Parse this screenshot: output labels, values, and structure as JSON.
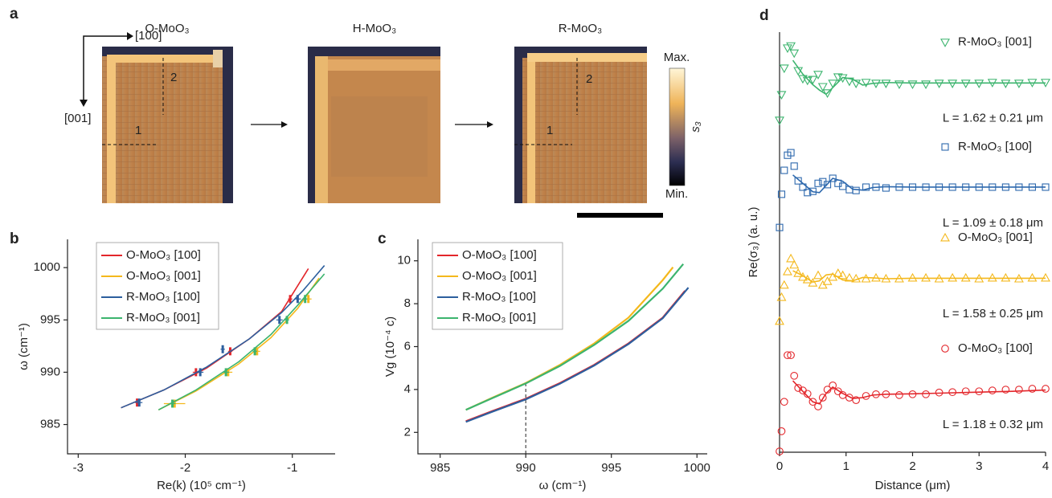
{
  "panel_a": {
    "label": "a",
    "images": [
      "O-MoO₃",
      "H-MoO₃",
      "R-MoO₃"
    ],
    "axis_labels": [
      "[100]",
      "[001]"
    ],
    "line_labels": [
      "1",
      "2"
    ],
    "colorbar": {
      "max": "Max.",
      "min": "Min.",
      "label": "s₃"
    }
  },
  "chart_data": [
    {
      "type": "line",
      "panel_label": "b",
      "xlabel": "Re(k) (10⁵ cm⁻¹)",
      "ylabel": "ω (cm⁻¹)",
      "xlim": [
        -3.1,
        -0.6
      ],
      "ylim": [
        982.2,
        1002.7
      ],
      "xticks": [
        -3,
        -2,
        -1
      ],
      "yticks": [
        985,
        990,
        995,
        1000
      ],
      "legend": "upper left",
      "series": [
        {
          "name": "O-MoO₃ [100]",
          "color": "#e3262b",
          "x": [
            -2.45,
            -1.9,
            -1.58,
            -1.02
          ],
          "values": [
            987.1,
            990,
            992,
            997
          ],
          "xerr": [
            0.02,
            0.03,
            0.02,
            0.02
          ],
          "fit_x": [
            -2.6,
            -2.2,
            -1.8,
            -1.4,
            -1.1,
            -0.85
          ],
          "fit": [
            986.6,
            988.3,
            990.4,
            993.2,
            995.8,
            999.9
          ]
        },
        {
          "name": "O-MoO₃ [001]",
          "color": "#f4b81c",
          "x": [
            -2.1,
            -1.6,
            -1.33,
            -0.85
          ],
          "values": [
            987,
            990,
            992,
            997
          ],
          "xerr": [
            0.1,
            0.04,
            0.03,
            0.03
          ],
          "fit_x": [
            -2.25,
            -1.9,
            -1.5,
            -1.2,
            -0.95,
            -0.75
          ],
          "fit": [
            986.4,
            988.2,
            990.8,
            993.3,
            996.1,
            999.0
          ]
        },
        {
          "name": "R-MoO₃ [100]",
          "color": "#2d5f9e",
          "x": [
            -2.43,
            -1.86,
            -1.65,
            -1.12,
            -0.95
          ],
          "values": [
            987.1,
            990,
            992.2,
            995,
            997
          ],
          "xerr": [
            0.03,
            0.03,
            0.02,
            0.03,
            0.03
          ],
          "fit_x": [
            -2.6,
            -2.2,
            -1.8,
            -1.4,
            -1.1,
            -0.9,
            -0.7
          ],
          "fit": [
            986.6,
            988.3,
            990.5,
            993.2,
            995.7,
            997.8,
            1000.2
          ]
        },
        {
          "name": "R-MoO₃ [001]",
          "color": "#3cb46e",
          "x": [
            -2.12,
            -1.62,
            -1.35,
            -1.05,
            -0.88
          ],
          "values": [
            987,
            990,
            992,
            995,
            997
          ],
          "xerr": [
            0.03,
            0.03,
            0.02,
            0.02,
            0.02
          ],
          "fit_x": [
            -2.25,
            -1.9,
            -1.5,
            -1.2,
            -0.95,
            -0.7
          ],
          "fit": [
            986.4,
            988.3,
            991.0,
            993.6,
            996.4,
            999.4
          ]
        }
      ]
    },
    {
      "type": "line",
      "panel_label": "c",
      "xlabel": "ω (cm⁻¹)",
      "ylabel": "Vg (10⁻⁴ c)",
      "xlim": [
        983.7,
        1000.6
      ],
      "ylim": [
        1,
        11
      ],
      "xticks": [
        985,
        990,
        995,
        1000
      ],
      "yticks": [
        2,
        4,
        6,
        8,
        10
      ],
      "legend": "upper left",
      "guide": {
        "x": 990,
        "y": 4.3
      },
      "series": [
        {
          "name": "O-MoO₃ [100]",
          "color": "#e3262b",
          "x": [
            986.5,
            988,
            990,
            992,
            994,
            996,
            998,
            999.3
          ],
          "values": [
            2.52,
            2.98,
            3.57,
            4.3,
            5.15,
            6.15,
            7.35,
            8.6
          ]
        },
        {
          "name": "O-MoO₃ [001]",
          "color": "#f4b81c",
          "x": [
            986.5,
            988,
            990,
            992,
            994,
            996,
            998,
            998.6
          ],
          "values": [
            3.05,
            3.6,
            4.3,
            5.15,
            6.15,
            7.35,
            9.1,
            9.7
          ]
        },
        {
          "name": "R-MoO₃ [100]",
          "color": "#2d5f9e",
          "x": [
            986.5,
            988,
            990,
            992,
            994,
            996,
            998,
            999.5
          ],
          "values": [
            2.49,
            2.95,
            3.54,
            4.27,
            5.12,
            6.12,
            7.32,
            8.75
          ]
        },
        {
          "name": "R-MoO₃ [001]",
          "color": "#3cb46e",
          "x": [
            986.5,
            988,
            990,
            992,
            994,
            996,
            998,
            999.2
          ],
          "values": [
            3.05,
            3.58,
            4.28,
            5.1,
            6.08,
            7.2,
            8.7,
            9.85
          ]
        }
      ]
    },
    {
      "type": "scatter",
      "panel_label": "d",
      "xlabel": "Distance (μm)",
      "ylabel": "Re(σ₃) (a. u.)",
      "xlim": [
        0,
        4
      ],
      "ylim": [
        0,
        10
      ],
      "xticks": [
        0,
        1,
        2,
        3,
        4
      ],
      "x": [
        0,
        0.03,
        0.07,
        0.12,
        0.17,
        0.22,
        0.28,
        0.35,
        0.42,
        0.5,
        0.58,
        0.65,
        0.72,
        0.8,
        0.88,
        0.95,
        1.05,
        1.15,
        1.3,
        1.45,
        1.6,
        1.8,
        2.0,
        2.2,
        2.4,
        2.6,
        2.8,
        3.0,
        3.2,
        3.4,
        3.6,
        3.8,
        4.0
      ],
      "fit_x": [
        0.2,
        0.35,
        0.5,
        0.6,
        0.7,
        0.8,
        0.95,
        1.1,
        1.25,
        1.4,
        1.6,
        2.0,
        2.5,
        3.0,
        3.5,
        4.0
      ],
      "series": [
        {
          "name": "R-MoO₃ [001]",
          "color": "#3cb46e",
          "marker": "triangle-down",
          "label": "L = 1.62 ± 0.21 μm",
          "values": [
            7.9,
            8.51,
            9.14,
            9.62,
            9.67,
            9.5,
            9.08,
            8.89,
            8.85,
            8.87,
            8.99,
            8.7,
            8.55,
            8.78,
            8.93,
            8.91,
            8.83,
            8.78,
            8.8,
            8.78,
            8.78,
            8.76,
            8.76,
            8.76,
            8.78,
            8.78,
            8.78,
            8.78,
            8.8,
            8.78,
            8.78,
            8.8,
            8.8
          ],
          "fit": [
            9.33,
            9.0,
            8.75,
            8.62,
            8.52,
            8.68,
            8.92,
            8.88,
            8.74,
            8.78,
            8.8,
            8.79,
            8.79,
            8.79,
            8.79,
            8.79
          ]
        },
        {
          "name": "R-MoO₃ [100]",
          "color": "#2d68ad",
          "marker": "square",
          "label": "L = 1.09 ± 0.18 μm",
          "values": [
            5.35,
            6.14,
            6.71,
            7.07,
            7.13,
            6.81,
            6.46,
            6.31,
            6.18,
            6.21,
            6.4,
            6.44,
            6.37,
            6.52,
            6.4,
            6.33,
            6.25,
            6.23,
            6.31,
            6.31,
            6.29,
            6.31,
            6.31,
            6.31,
            6.31,
            6.31,
            6.31,
            6.31,
            6.31,
            6.31,
            6.31,
            6.31,
            6.31
          ],
          "fit": [
            6.6,
            6.4,
            6.2,
            6.18,
            6.35,
            6.52,
            6.45,
            6.26,
            6.24,
            6.3,
            6.32,
            6.31,
            6.31,
            6.31,
            6.31,
            6.31
          ]
        },
        {
          "name": "O-MoO₃ [001]",
          "color": "#f4b81c",
          "marker": "triangle-up",
          "label": "L = 1.58 ± 0.25 μm",
          "values": [
            3.12,
            3.69,
            3.98,
            4.3,
            4.61,
            4.46,
            4.26,
            4.17,
            4.11,
            4.03,
            4.21,
            3.98,
            4.07,
            4.17,
            4.26,
            4.21,
            4.15,
            4.13,
            4.13,
            4.15,
            4.13,
            4.13,
            4.15,
            4.15,
            4.13,
            4.15,
            4.15,
            4.13,
            4.15,
            4.15,
            4.13,
            4.15,
            4.15
          ],
          "fit": [
            4.32,
            4.2,
            4.05,
            4.08,
            4.22,
            4.24,
            4.1,
            4.08,
            4.16,
            4.15,
            4.13,
            4.14,
            4.14,
            4.14,
            4.14,
            4.14
          ]
        },
        {
          "name": "O-MoO₃ [100]",
          "color": "#e3262b",
          "marker": "circle",
          "label": "L = 1.18 ± 0.32 μm",
          "values": [
            0.02,
            0.5,
            1.2,
            2.31,
            2.31,
            1.82,
            1.53,
            1.47,
            1.39,
            1.2,
            1.09,
            1.3,
            1.49,
            1.59,
            1.45,
            1.36,
            1.3,
            1.24,
            1.34,
            1.38,
            1.38,
            1.36,
            1.38,
            1.38,
            1.42,
            1.43,
            1.45,
            1.45,
            1.47,
            1.49,
            1.49,
            1.51,
            1.51
          ],
          "fit": [
            1.7,
            1.45,
            1.2,
            1.15,
            1.4,
            1.55,
            1.4,
            1.28,
            1.3,
            1.36,
            1.38,
            1.39,
            1.41,
            1.43,
            1.45,
            1.48
          ]
        }
      ]
    }
  ]
}
